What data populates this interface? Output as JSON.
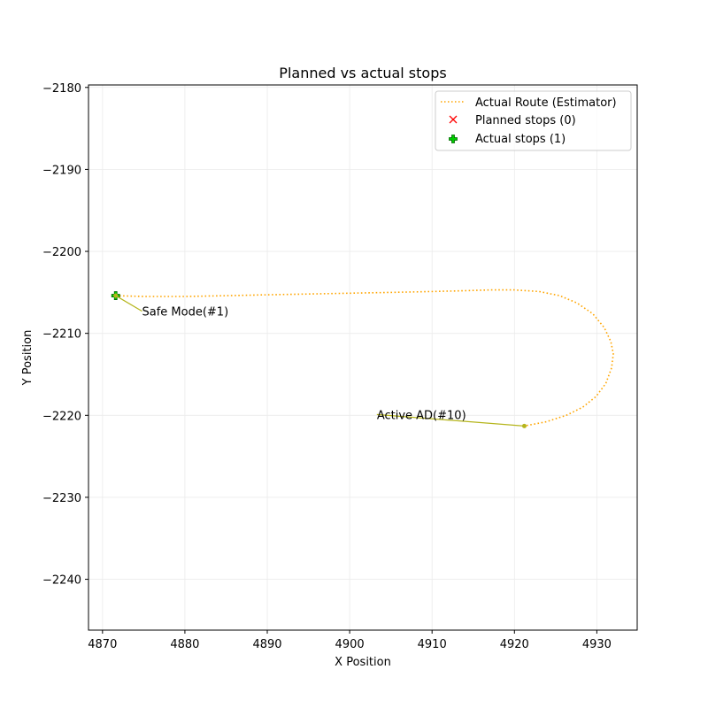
{
  "chart_data": {
    "type": "line",
    "title": "Planned vs actual stops",
    "xlabel": "X Position",
    "ylabel": "Y Position",
    "xlim": [
      4868.3,
      4934.9
    ],
    "ylim": [
      -2246.2,
      -2179.7
    ],
    "x_ticks": [
      4870,
      4880,
      4890,
      4900,
      4910,
      4920,
      4930
    ],
    "y_ticks": [
      -2180,
      -2190,
      -2200,
      -2210,
      -2220,
      -2230,
      -2240
    ],
    "x_tick_labels": [
      "4870",
      "4880",
      "4890",
      "4900",
      "4910",
      "4920",
      "4930"
    ],
    "y_tick_labels": [
      "−2180",
      "−2190",
      "−2200",
      "−2210",
      "−2220",
      "−2230",
      "−2240"
    ],
    "grid": true,
    "legend_position": "top-right",
    "series": [
      {
        "name": "Actual Route (Estimator)",
        "style": "dotted",
        "color": "#ffa500",
        "points": [
          [
            4871.6,
            -2205.4
          ],
          [
            4875,
            -2205.5
          ],
          [
            4880,
            -2205.5
          ],
          [
            4885,
            -2205.4
          ],
          [
            4890,
            -2205.3
          ],
          [
            4895,
            -2205.2
          ],
          [
            4900,
            -2205.1
          ],
          [
            4905,
            -2205.0
          ],
          [
            4910,
            -2204.9
          ],
          [
            4914,
            -2204.8
          ],
          [
            4917,
            -2204.7
          ],
          [
            4920,
            -2204.7
          ],
          [
            4923,
            -2204.9
          ],
          [
            4925.5,
            -2205.4
          ],
          [
            4927.6,
            -2206.3
          ],
          [
            4929.5,
            -2207.6
          ],
          [
            4930.9,
            -2209.3
          ],
          [
            4931.7,
            -2211.0
          ],
          [
            4932.0,
            -2212.5
          ],
          [
            4931.8,
            -2214.2
          ],
          [
            4931.1,
            -2216.1
          ],
          [
            4929.9,
            -2217.7
          ],
          [
            4928.3,
            -2219.0
          ],
          [
            4926.3,
            -2220.0
          ],
          [
            4923.8,
            -2220.8
          ],
          [
            4921.2,
            -2221.3
          ]
        ]
      },
      {
        "name": "Planned stops (0)",
        "marker": "x",
        "color": "#ff0000",
        "points": []
      },
      {
        "name": "Actual stops (1)",
        "marker": "plus-filled",
        "color": "#00cc00",
        "edge_color": "#006400",
        "points": [
          [
            4871.6,
            -2205.4
          ]
        ]
      }
    ],
    "annotations": [
      {
        "text": "Safe Mode(#1)",
        "x": 4871.6,
        "y": -2205.4,
        "text_x": 4874.8,
        "text_y": -2207.3
      },
      {
        "text": "Active AD(#10)",
        "x": 4921.2,
        "y": -2221.3,
        "text_x": 4903.3,
        "text_y": -2219.9
      }
    ],
    "annotation_color": "#b5b51c"
  }
}
